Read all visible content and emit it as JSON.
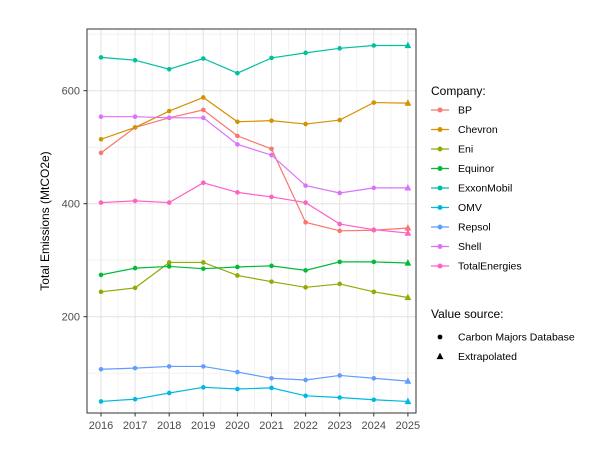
{
  "chart_data": {
    "type": "line",
    "title": "",
    "xlabel": "",
    "ylabel": "Total Emissions (MtCO2e)",
    "x": [
      2016,
      2017,
      2018,
      2019,
      2020,
      2021,
      2022,
      2023,
      2024,
      2025
    ],
    "yticks": [
      200,
      400,
      600
    ],
    "yticks_minor": [
      100,
      300,
      500,
      700
    ],
    "ylim": [
      30,
      710
    ],
    "grid": "on",
    "legend_position": "right",
    "extrapolated_x": [
      2025
    ],
    "series": [
      {
        "name": "BP",
        "color": "#F8766D",
        "values": [
          490,
          535,
          552,
          566,
          520,
          497,
          367,
          352,
          353,
          357
        ]
      },
      {
        "name": "Chevron",
        "color": "#D39200",
        "values": [
          514,
          535,
          564,
          588,
          545,
          547,
          541,
          548,
          579,
          578
        ]
      },
      {
        "name": "Eni",
        "color": "#93AA00",
        "values": [
          244,
          251,
          296,
          296,
          273,
          262,
          252,
          258,
          244,
          234
        ]
      },
      {
        "name": "Equinor",
        "color": "#00BA38",
        "values": [
          274,
          286,
          289,
          285,
          288,
          290,
          282,
          297,
          297,
          295
        ]
      },
      {
        "name": "ExxonMobil",
        "color": "#00C19F",
        "values": [
          659,
          654,
          638,
          657,
          631,
          658,
          667,
          675,
          680,
          680
        ]
      },
      {
        "name": "OMV",
        "color": "#00B9E3",
        "values": [
          50,
          54,
          65,
          75,
          72,
          74,
          60,
          57,
          53,
          50
        ]
      },
      {
        "name": "Repsol",
        "color": "#619CFF",
        "values": [
          107,
          109,
          112,
          112,
          102,
          91,
          88,
          96,
          91,
          86
        ]
      },
      {
        "name": "Shell",
        "color": "#DB72FB",
        "values": [
          554,
          554,
          552,
          552,
          505,
          486,
          432,
          419,
          428,
          428
        ]
      },
      {
        "name": "TotalEnergies",
        "color": "#FF61C3",
        "values": [
          402,
          405,
          402,
          437,
          420,
          412,
          402,
          364,
          354,
          348
        ]
      }
    ]
  },
  "legend": {
    "company_title": "Company:",
    "source_title": "Value source:",
    "sources": [
      {
        "label": "Carbon Majors Database",
        "shape": "circle"
      },
      {
        "label": "Extrapolated",
        "shape": "triangle"
      }
    ]
  },
  "colors": {
    "panel_border": "#333333",
    "grid_major": "#e2e2e2",
    "grid_minor": "#f0f0f0",
    "axis_text": "#4d4d4d",
    "marker_black": "#000000",
    "background": "#ffffff"
  }
}
